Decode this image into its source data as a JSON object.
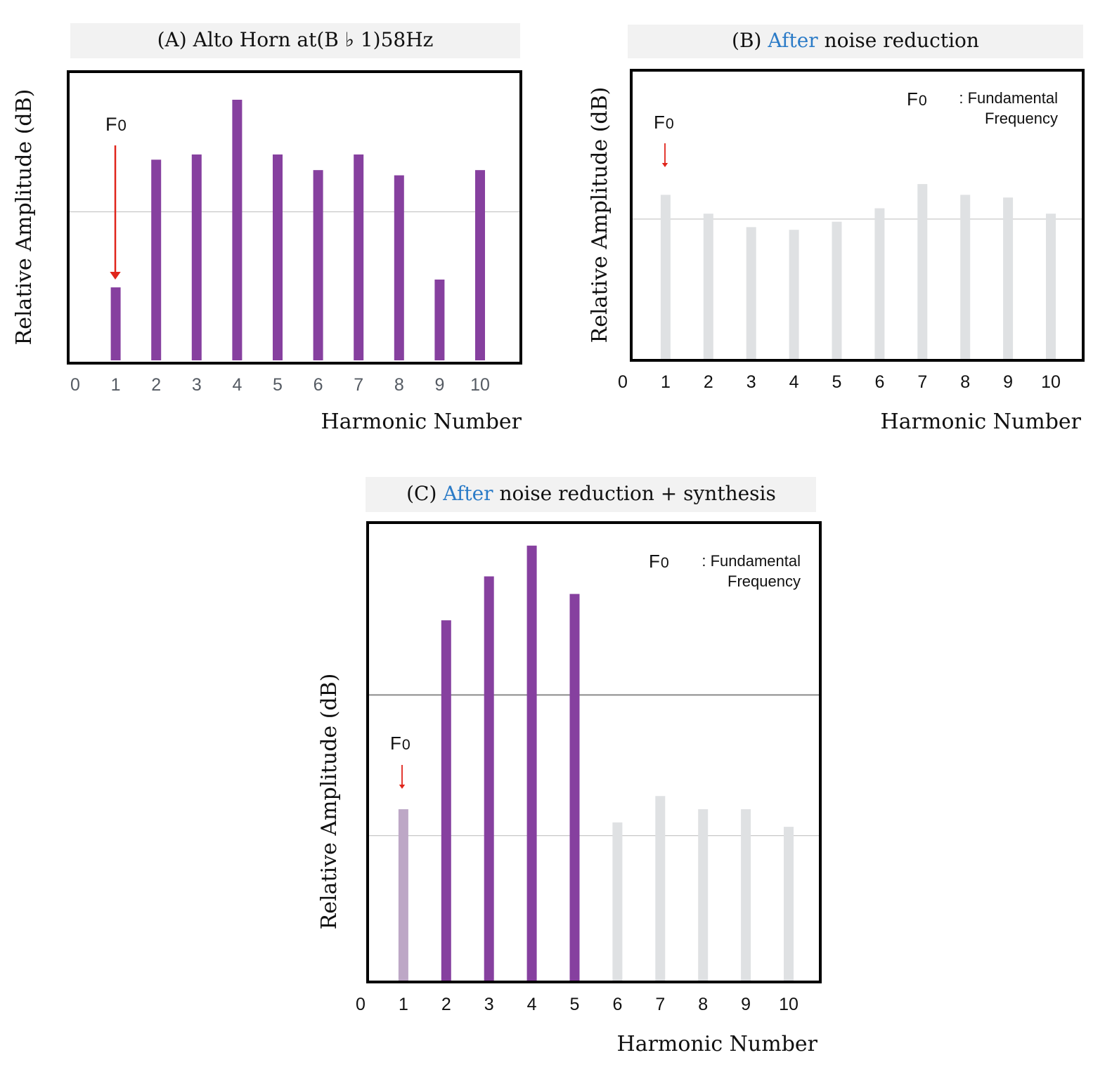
{
  "colors": {
    "purple": "#86409f",
    "grey": "#dfe1e3",
    "faded_purple": "#bda7c6",
    "red_arrow": "#e0251b",
    "accent_blue": "#2b7bc7",
    "title_bg": "#f2f2f2",
    "tick_text": "#555b63"
  },
  "chart_data": [
    {
      "type": "bar",
      "panel": "A",
      "title": "(A)  Alto Horn at(B ♭ 1)58Hz",
      "title_prefix": "(A)",
      "title_rest": "Alto Horn at(B ♭ 1)58Hz",
      "xlabel": "Harmonic Number",
      "ylabel": "Relative Amplitude (dB)",
      "x_ticks": [
        "0",
        "1",
        "2",
        "3",
        "4",
        "5",
        "6",
        "7",
        "8",
        "9",
        "10"
      ],
      "categories": [
        1,
        2,
        3,
        4,
        5,
        6,
        7,
        8,
        9,
        10
      ],
      "values": [
        28,
        77,
        79,
        100,
        79,
        73,
        79,
        71,
        31,
        73
      ],
      "bar_colors": [
        "purple",
        "purple",
        "purple",
        "purple",
        "purple",
        "purple",
        "purple",
        "purple",
        "purple",
        "purple"
      ],
      "ylim": [
        0,
        100
      ],
      "reference_line": 57,
      "f0_label": "F0",
      "annotation_label": ""
    },
    {
      "type": "bar",
      "panel": "B",
      "title_prefix": "(B)",
      "title_accent": "After",
      "title_rest": "noise reduction",
      "xlabel": "Harmonic Number",
      "ylabel": "Relative Amplitude (dB)",
      "x_ticks": [
        "0",
        "1",
        "2",
        "3",
        "4",
        "5",
        "6",
        "7",
        "8",
        "9",
        "10"
      ],
      "categories": [
        1,
        2,
        3,
        4,
        5,
        6,
        7,
        8,
        9,
        10
      ],
      "values": [
        61,
        54,
        49,
        48,
        51,
        56,
        65,
        61,
        60,
        54
      ],
      "bar_colors": [
        "grey",
        "grey",
        "grey",
        "grey",
        "grey",
        "grey",
        "grey",
        "grey",
        "grey",
        "grey"
      ],
      "ylim": [
        0,
        100
      ],
      "reference_line": 52,
      "f0_label": "F0",
      "legend_line1": ": Fundamental",
      "legend_line2": "Frequency"
    },
    {
      "type": "bar",
      "panel": "C",
      "title_prefix": "(C)",
      "title_accent": "After",
      "title_rest": "noise reduction + synthesis",
      "xlabel": "Harmonic Number",
      "ylabel": "Relative Amplitude (dB)",
      "x_ticks": [
        "0",
        "1",
        "2",
        "3",
        "4",
        "5",
        "6",
        "7",
        "8",
        "9",
        "10"
      ],
      "categories": [
        1,
        2,
        3,
        4,
        5,
        6,
        7,
        8,
        9,
        10
      ],
      "values": [
        39,
        82,
        92,
        99,
        88,
        36,
        42,
        39,
        39,
        35
      ],
      "bar_colors": [
        "faded_purple",
        "purple",
        "purple",
        "purple",
        "purple",
        "grey",
        "grey",
        "grey",
        "grey",
        "grey"
      ],
      "ylim": [
        0,
        102
      ],
      "reference_lines": [
        65,
        33
      ],
      "f0_label": "F0",
      "legend_line1": ": Fundamental",
      "legend_line2": "Frequency"
    }
  ]
}
